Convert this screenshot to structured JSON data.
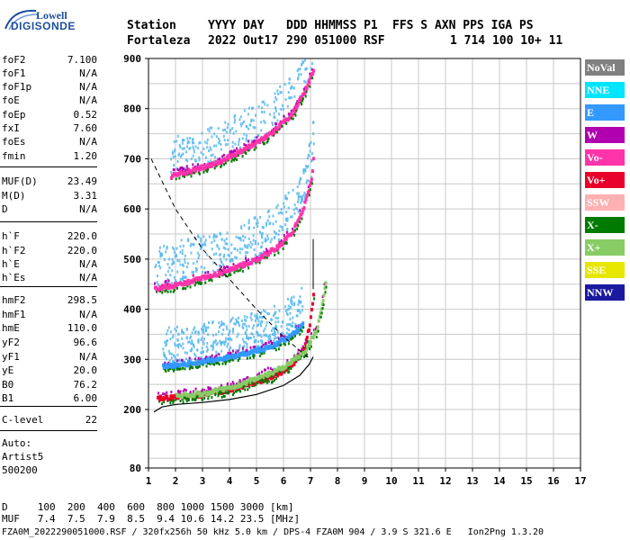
{
  "logo": {
    "line1": "Lowell",
    "line2": "DIGISONDE"
  },
  "header": {
    "row1": [
      "Station",
      "YYYY DAY",
      "DDD HHMMSS P1",
      "FFS S AXN PPS IGA PS"
    ],
    "row2": [
      "Fortaleza",
      "2022 Out17",
      "290 051000 RSF",
      "1 714 100 10+ 11"
    ]
  },
  "params": [
    {
      "label": "foF2",
      "value": "7.100"
    },
    {
      "label": "foF1",
      "value": "N/A"
    },
    {
      "label": "foF1p",
      "value": "N/A"
    },
    {
      "label": "foE",
      "value": "N/A"
    },
    {
      "label": "foEp",
      "value": "0.52"
    },
    {
      "label": "fxI",
      "value": "7.60"
    },
    {
      "label": "foEs",
      "value": "N/A"
    },
    {
      "label": "fmin",
      "value": "1.20"
    },
    {
      "label": "MUF(D)",
      "value": "23.49"
    },
    {
      "label": "M(D)",
      "value": "3.31"
    },
    {
      "label": "D",
      "value": "N/A"
    },
    {
      "label": "h`F",
      "value": "220.0"
    },
    {
      "label": "h`F2",
      "value": "220.0"
    },
    {
      "label": "h`E",
      "value": "N/A"
    },
    {
      "label": "h`Es",
      "value": "N/A"
    },
    {
      "label": "hmF2",
      "value": "298.5"
    },
    {
      "label": "hmF1",
      "value": "N/A"
    },
    {
      "label": "hmE",
      "value": "110.0"
    },
    {
      "label": "yF2",
      "value": "96.6"
    },
    {
      "label": "yF1",
      "value": "N/A"
    },
    {
      "label": "yE",
      "value": "20.0"
    },
    {
      "label": "B0",
      "value": "76.2"
    },
    {
      "label": "B1",
      "value": "6.00"
    },
    {
      "label": "C-level",
      "value": "22"
    }
  ],
  "auto": {
    "line1": "Auto:",
    "line2": "Artist5",
    "line3": "500200"
  },
  "legend": [
    {
      "label": "NoVal",
      "bg": "#808080",
      "fg": "#ffffff"
    },
    {
      "label": "NNE",
      "bg": "#00e5ff",
      "fg": "#ffffff"
    },
    {
      "label": "E",
      "bg": "#3399ff",
      "fg": "#ffffff"
    },
    {
      "label": "W",
      "bg": "#b000b0",
      "fg": "#ffffff"
    },
    {
      "label": "Vo-",
      "bg": "#ff33aa",
      "fg": "#ffffff"
    },
    {
      "label": "Vo+",
      "bg": "#e8002a",
      "fg": "#ffffff"
    },
    {
      "label": "SSW",
      "bg": "#ffb0b0",
      "fg": "#ffffff"
    },
    {
      "label": "X-",
      "bg": "#007a00",
      "fg": "#ffffff"
    },
    {
      "label": "X+",
      "bg": "#88cc66",
      "fg": "#ffffff"
    },
    {
      "label": "SSE",
      "bg": "#e6e600",
      "fg": "#ffffff"
    },
    {
      "label": "NNW",
      "bg": "#1a1aa0",
      "fg": "#ffffff"
    }
  ],
  "footer": {
    "muf_row1": "D     100  200  400  600  800 1000 1500 3000 [km]",
    "muf_row2": "MUF   7.4  7.5  7.9  8.5  9.4 10.6 14.2 23.5 [MHz]",
    "info": "FZA0M_2022290051000.RSF / 320fx256h 50 kHz 5.0 km / DPS-4 FZA0M 904 / 3.9 S 321.6 E   Ion2Png 1.3.20"
  },
  "chart_data": {
    "type": "scatter",
    "x": {
      "range": [
        1,
        17
      ],
      "ticks": [
        1,
        2,
        3,
        4,
        5,
        6,
        7,
        8,
        9,
        10,
        11,
        12,
        13,
        14,
        15,
        16,
        17
      ]
    },
    "y": {
      "range": [
        80,
        900
      ],
      "ticks": [
        80,
        200,
        300,
        400,
        500,
        600,
        700,
        800,
        900
      ]
    },
    "grid": true,
    "traces": [
      {
        "name": "O-trace 1st hop",
        "color": "#e8002a",
        "points": [
          [
            1.3,
            222
          ],
          [
            2,
            224
          ],
          [
            3,
            230
          ],
          [
            4,
            240
          ],
          [
            5,
            255
          ],
          [
            5.8,
            272
          ],
          [
            6.3,
            290
          ],
          [
            6.7,
            320
          ],
          [
            6.9,
            360
          ],
          [
            7.0,
            400
          ],
          [
            7.1,
            440
          ]
        ]
      },
      {
        "name": "X-trace 1st hop",
        "color": "#88cc66",
        "points": [
          [
            2,
            226
          ],
          [
            3,
            232
          ],
          [
            4,
            244
          ],
          [
            5,
            262
          ],
          [
            6,
            285
          ],
          [
            6.8,
            320
          ],
          [
            7.2,
            360
          ],
          [
            7.4,
            410
          ],
          [
            7.55,
            460
          ]
        ]
      },
      {
        "name": "O-trace 2nd hop",
        "color": "#ff33aa",
        "points": [
          [
            1.2,
            440
          ],
          [
            2,
            448
          ],
          [
            3,
            462
          ],
          [
            4,
            478
          ],
          [
            5,
            500
          ],
          [
            5.8,
            525
          ],
          [
            6.3,
            555
          ],
          [
            6.7,
            600
          ],
          [
            7.0,
            660
          ],
          [
            7.1,
            720
          ]
        ]
      },
      {
        "name": "O-trace 3rd hop",
        "color": "#ff33aa",
        "points": [
          [
            1.8,
            665
          ],
          [
            2.5,
            675
          ],
          [
            3.5,
            692
          ],
          [
            4.5,
            718
          ],
          [
            5.5,
            750
          ],
          [
            6.3,
            790
          ],
          [
            6.8,
            840
          ],
          [
            7.1,
            880
          ]
        ]
      },
      {
        "name": "Oblique E echoes",
        "color": "#3399ff",
        "points": [
          [
            1.5,
            285
          ],
          [
            2.5,
            292
          ],
          [
            3.5,
            300
          ],
          [
            4.5,
            310
          ],
          [
            5.5,
            325
          ],
          [
            6.2,
            345
          ],
          [
            6.7,
            370
          ]
        ]
      }
    ],
    "profile": {
      "color": "#000000",
      "points": [
        [
          1.2,
          195
        ],
        [
          1.5,
          205
        ],
        [
          2,
          210
        ],
        [
          3,
          214
        ],
        [
          4,
          220
        ],
        [
          5,
          230
        ],
        [
          6,
          248
        ],
        [
          6.6,
          268
        ],
        [
          6.95,
          290
        ],
        [
          7.1,
          305
        ]
      ]
    },
    "muf_curve": {
      "color": "#000000",
      "dashed": true,
      "points": [
        [
          1.1,
          700
        ],
        [
          2,
          600
        ],
        [
          3,
          520
        ],
        [
          4,
          460
        ],
        [
          5,
          400
        ],
        [
          6,
          345
        ],
        [
          7,
          300
        ]
      ]
    }
  }
}
